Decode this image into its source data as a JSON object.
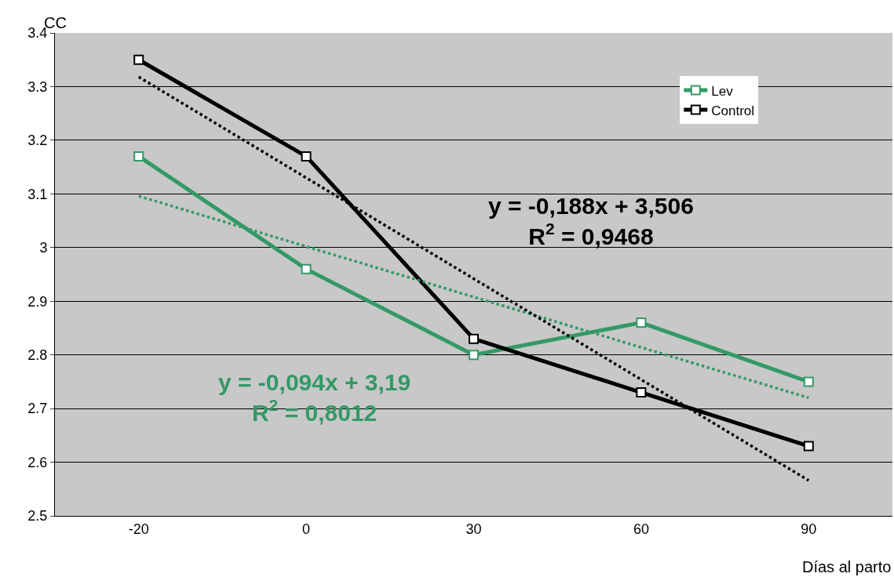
{
  "chart_data": {
    "type": "line",
    "ylabel": "CC",
    "xlabel": "Días al parto",
    "categories": [
      "-20",
      "0",
      "30",
      "60",
      "90"
    ],
    "series": [
      {
        "name": "Lev",
        "color": "#339966",
        "values": [
          3.17,
          2.96,
          2.8,
          2.86,
          2.75
        ],
        "marker": "square",
        "line_style": "solid"
      },
      {
        "name": "Control",
        "color": "#000000",
        "values": [
          3.35,
          3.17,
          2.83,
          2.73,
          2.63
        ],
        "marker": "square",
        "line_style": "solid"
      },
      {
        "color": "#339966",
        "values": [
          3.096,
          3.002,
          2.908,
          2.814,
          2.72
        ],
        "marker": "none",
        "line_style": "dotted"
      },
      {
        "color": "#000000",
        "values": [
          3.318,
          3.13,
          2.942,
          2.754,
          2.566
        ],
        "marker": "none",
        "line_style": "dotted"
      }
    ],
    "ylim": [
      2.5,
      3.4
    ],
    "yticks": [
      2.5,
      2.6,
      2.7,
      2.8,
      2.9,
      3,
      3.1,
      3.2,
      3.3,
      3.4
    ],
    "grid": "y",
    "legend": "top right",
    "annotations": [
      "y = -0,094x + 3,19\nR$^{2}$ = 0,8012",
      "y = -0,188x + 3,506\nR$^{2}$ = 0,9468"
    ]
  }
}
